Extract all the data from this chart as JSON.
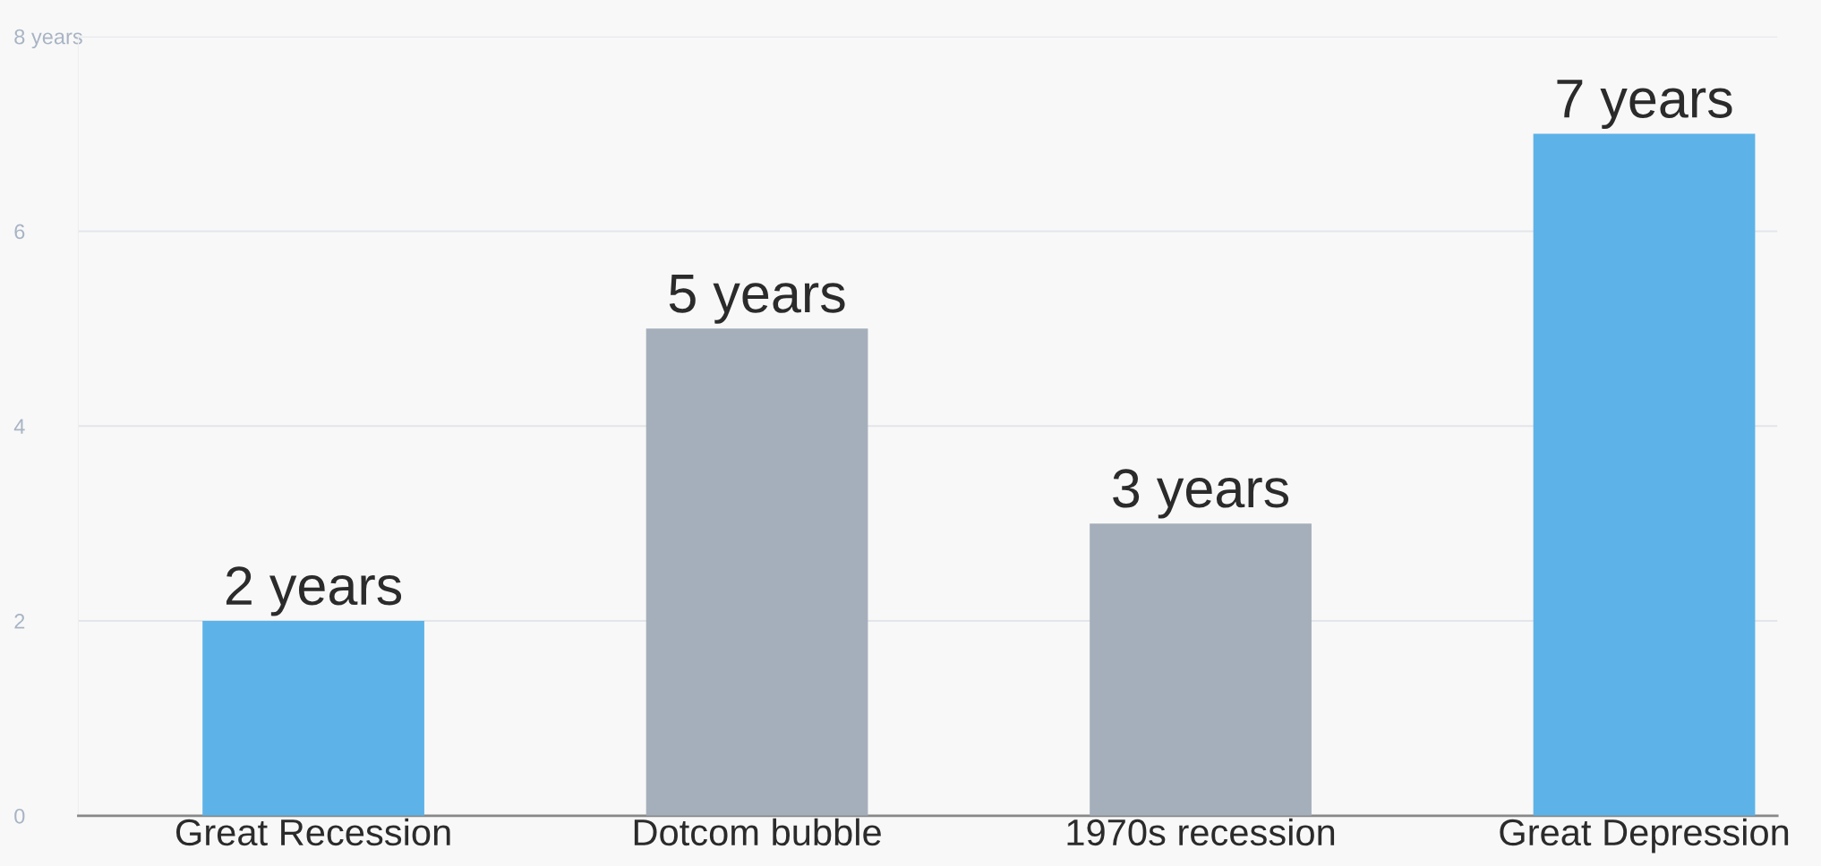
{
  "chart_data": {
    "type": "bar",
    "categories": [
      "Great Recession",
      "Dotcom bubble",
      "1970s recession",
      "Great Depression"
    ],
    "values": [
      2,
      5,
      3,
      7
    ],
    "colors": [
      "#5db3e8",
      "#a5afbb",
      "#a5afbb",
      "#5db3e8"
    ],
    "value_labels": [
      "2 years",
      "5 years",
      "3 years",
      "7 years"
    ],
    "ylim": [
      0,
      8
    ],
    "yticks": [
      0,
      2,
      4,
      6,
      {
        "value": 8,
        "label": "8 years"
      }
    ],
    "grid": "y",
    "legend": false
  }
}
